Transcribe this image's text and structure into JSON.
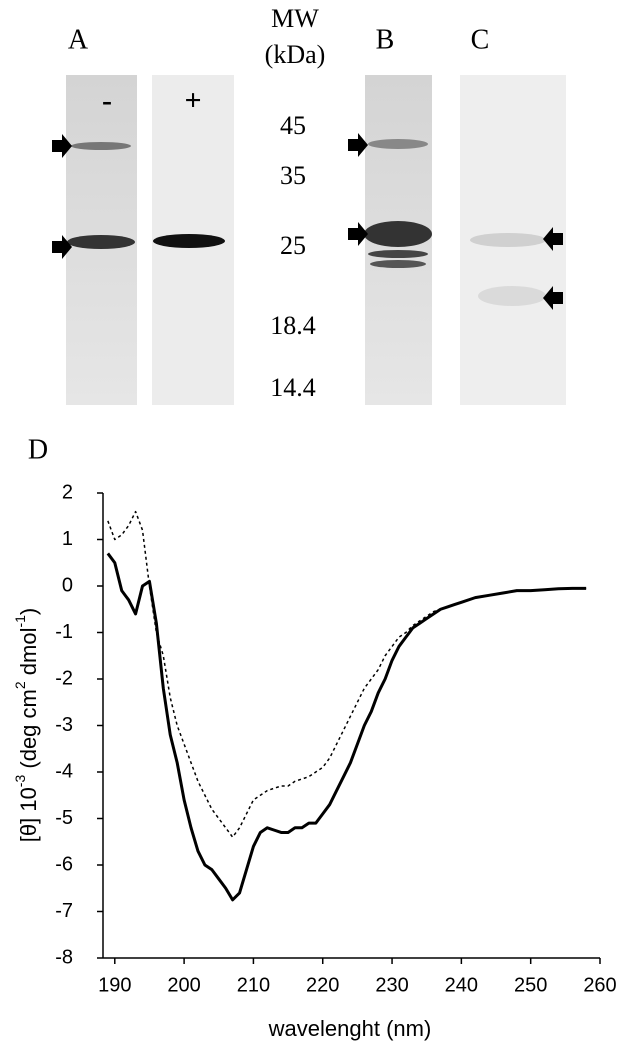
{
  "figure": {
    "panel_labels": [
      "A",
      "B",
      "C"
    ],
    "lane_labels": [
      "-",
      "+"
    ],
    "mw_header": [
      "MW",
      "(kDa)"
    ],
    "mw_markers": [
      "45",
      "35",
      "25",
      "18.4",
      "14.4"
    ]
  },
  "chart_data": {
    "type": "line",
    "label": "D",
    "xlabel": "wavelenght (nm)",
    "ylabel_parts": [
      "[θ] 10",
      "-3",
      " (deg cm",
      "2",
      " dmol",
      "-1",
      ")"
    ],
    "x": [
      189,
      190,
      191,
      192,
      193,
      194,
      195,
      196,
      197,
      198,
      199,
      200,
      201,
      202,
      203,
      204,
      205,
      206,
      207,
      208,
      209,
      210,
      211,
      212,
      213,
      214,
      215,
      216,
      217,
      218,
      219,
      220,
      221,
      222,
      223,
      224,
      225,
      226,
      227,
      228,
      229,
      230,
      231,
      232,
      233,
      234,
      235,
      236,
      237,
      238,
      239,
      240,
      242,
      244,
      246,
      248,
      250,
      252,
      254,
      256,
      258
    ],
    "series": [
      {
        "color": "#000000",
        "dashed": false,
        "values": [
          0.7,
          0.5,
          -0.1,
          -0.3,
          -0.6,
          0.0,
          0.1,
          -0.8,
          -2.2,
          -3.2,
          -3.8,
          -4.6,
          -5.2,
          -5.7,
          -6.0,
          -6.1,
          -6.3,
          -6.5,
          -6.75,
          -6.6,
          -6.1,
          -5.6,
          -5.3,
          -5.2,
          -5.25,
          -5.3,
          -5.3,
          -5.2,
          -5.2,
          -5.1,
          -5.1,
          -4.9,
          -4.7,
          -4.4,
          -4.1,
          -3.8,
          -3.4,
          -3.0,
          -2.7,
          -2.3,
          -2.0,
          -1.6,
          -1.3,
          -1.1,
          -0.9,
          -0.8,
          -0.7,
          -0.6,
          -0.5,
          -0.45,
          -0.4,
          -0.35,
          -0.25,
          -0.2,
          -0.15,
          -0.1,
          -0.1,
          -0.08,
          -0.06,
          -0.05,
          -0.05
        ]
      },
      {
        "color": "#000000",
        "dashed": true,
        "values": [
          1.4,
          1.0,
          1.1,
          1.3,
          1.6,
          1.2,
          0.0,
          -1.0,
          -1.5,
          -2.4,
          -3.0,
          -3.4,
          -3.8,
          -4.2,
          -4.5,
          -4.8,
          -5.0,
          -5.2,
          -5.4,
          -5.2,
          -4.9,
          -4.6,
          -4.5,
          -4.4,
          -4.35,
          -4.3,
          -4.3,
          -4.2,
          -4.15,
          -4.1,
          -4.0,
          -3.9,
          -3.7,
          -3.4,
          -3.1,
          -2.8,
          -2.5,
          -2.2,
          -2.0,
          -1.8,
          -1.5,
          -1.3,
          -1.1,
          -1.0,
          -0.85,
          -0.75,
          -0.65,
          -0.55,
          -0.5,
          -0.45,
          -0.4,
          -0.35,
          -0.25,
          -0.2,
          -0.15,
          -0.1,
          -0.1,
          -0.08,
          -0.06,
          -0.05,
          -0.05
        ]
      }
    ],
    "xlim": [
      188.3,
      260
    ],
    "ylim": [
      -8,
      2
    ],
    "xticks": [
      190,
      200,
      210,
      220,
      230,
      240,
      250,
      260
    ],
    "yticks": [
      -8,
      -7,
      -6,
      -5,
      -4,
      -3,
      -2,
      -1,
      0,
      1,
      2
    ]
  }
}
